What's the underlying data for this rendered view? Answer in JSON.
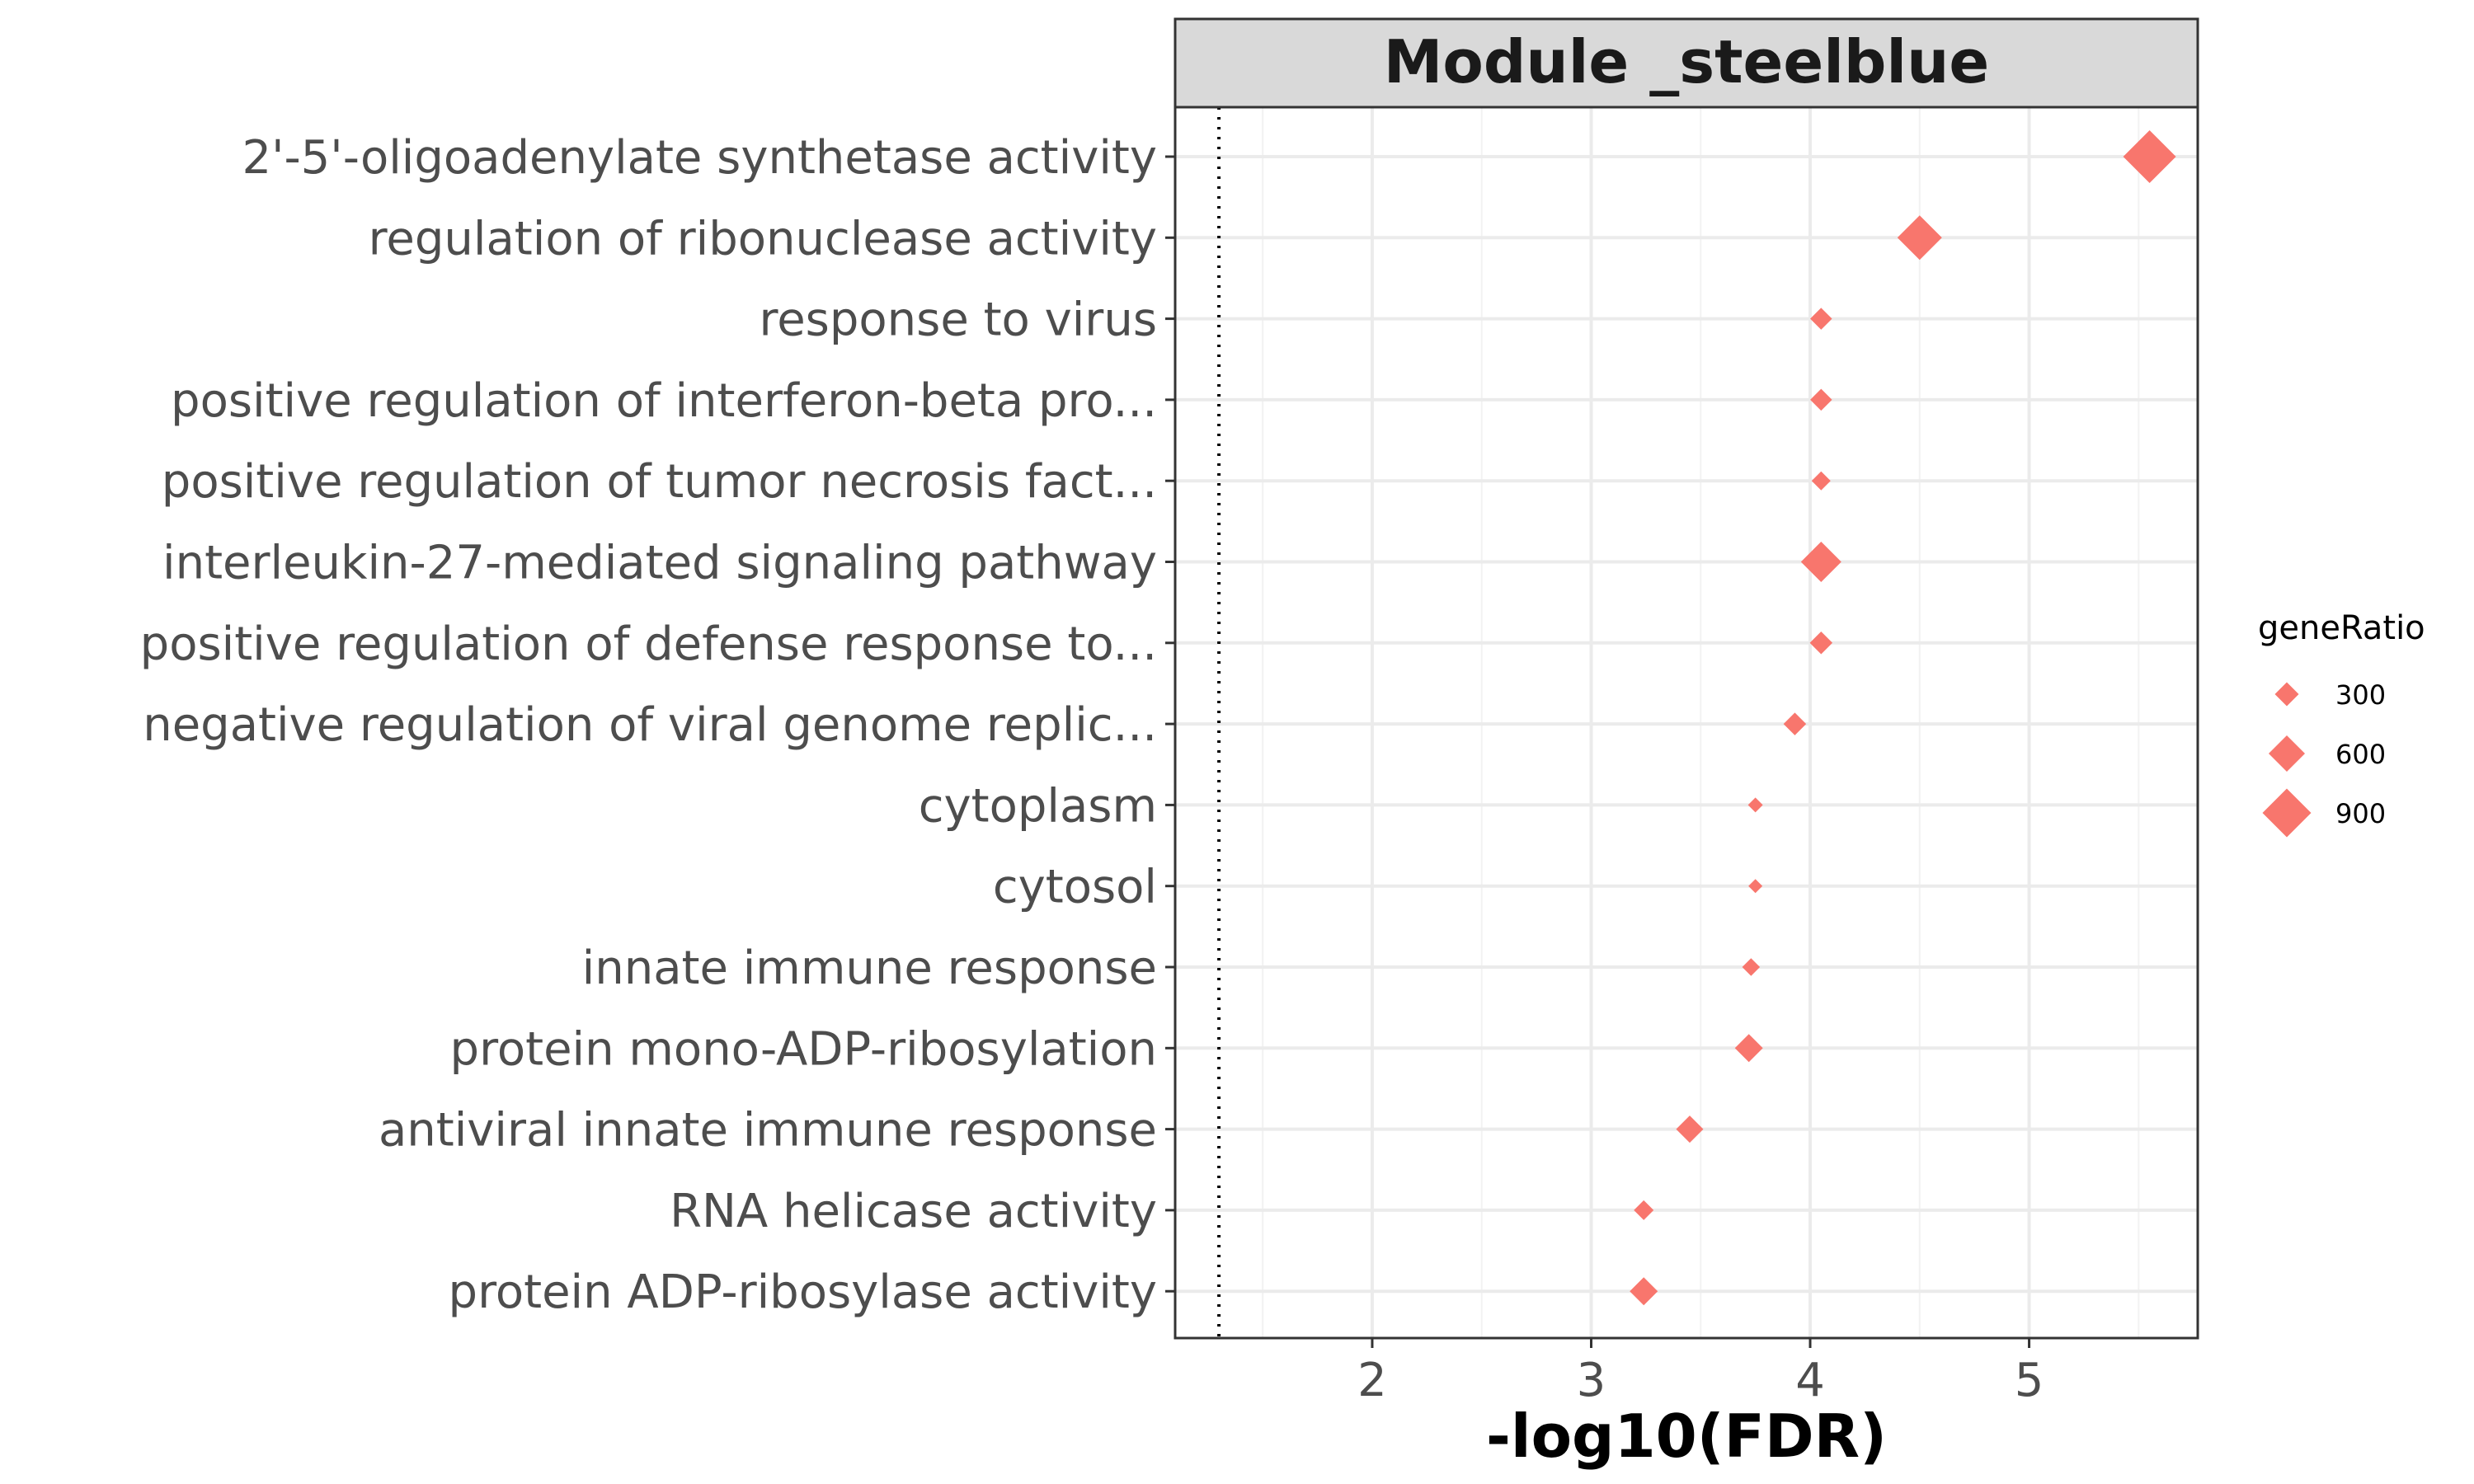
{
  "chart_data": {
    "type": "scatter",
    "title": "",
    "facet_label": "Module _steelblue",
    "xlabel": "-log10(FDR)",
    "ylabel": "",
    "xlim": [
      1.1,
      5.77
    ],
    "xticks": [
      2,
      3,
      4,
      5
    ],
    "reference_line_x": 1.3,
    "marker": "diamond",
    "color": "#F8766D",
    "grid": true,
    "legend": {
      "title": "geneRatio",
      "placement": "right",
      "entries": [
        {
          "label": "300",
          "value": 300
        },
        {
          "label": "600",
          "value": 600
        },
        {
          "label": "900",
          "value": 900
        }
      ]
    },
    "points": [
      {
        "term": "2'-5'-oligoadenylate synthetase activity",
        "x": 5.55,
        "size": 1000
      },
      {
        "term": "regulation of ribonuclease activity",
        "x": 4.5,
        "size": 800
      },
      {
        "term": "response to virus",
        "x": 4.05,
        "size": 250
      },
      {
        "term": "positive regulation of interferon-beta pro...",
        "x": 4.05,
        "size": 250
      },
      {
        "term": "positive regulation of tumor necrosis fact...",
        "x": 4.05,
        "size": 180
      },
      {
        "term": "interleukin-27-mediated signaling pathway",
        "x": 4.05,
        "size": 700
      },
      {
        "term": "positive regulation of defense response to...",
        "x": 4.05,
        "size": 270
      },
      {
        "term": "negative regulation of viral genome replic...",
        "x": 3.93,
        "size": 270
      },
      {
        "term": "cytoplasm",
        "x": 3.75,
        "size": 80
      },
      {
        "term": "cytosol",
        "x": 3.75,
        "size": 60
      },
      {
        "term": "innate immune response",
        "x": 3.73,
        "size": 150
      },
      {
        "term": "protein mono-ADP-ribosylation",
        "x": 3.72,
        "size": 400
      },
      {
        "term": "antiviral innate immune response",
        "x": 3.45,
        "size": 380
      },
      {
        "term": "RNA helicase activity",
        "x": 3.24,
        "size": 200
      },
      {
        "term": "protein ADP-ribosylase activity",
        "x": 3.24,
        "size": 400
      }
    ]
  }
}
